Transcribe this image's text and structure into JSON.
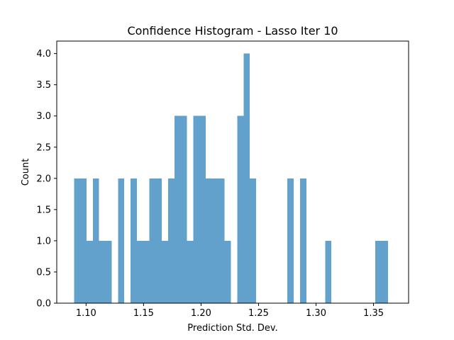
{
  "chart_data": {
    "type": "bar",
    "title": "Confidence Histogram - Lasso Iter 10",
    "xlabel": "Prediction Std. Dev.",
    "ylabel": "Count",
    "xlim": [
      1.0745,
      1.3805
    ],
    "ylim": [
      0,
      4.2
    ],
    "x_ticks": [
      "1.10",
      "1.15",
      "1.20",
      "1.25",
      "1.30",
      "1.35"
    ],
    "y_ticks": [
      "0.0",
      "0.5",
      "1.0",
      "1.5",
      "2.0",
      "2.5",
      "3.0",
      "3.5",
      "4.0"
    ],
    "bar_color": "#62a1cb",
    "bin_start": 1.0895,
    "bin_width": 0.00546,
    "counts": [
      2,
      2,
      1,
      2,
      1,
      1,
      0,
      2,
      0,
      2,
      1,
      1,
      2,
      2,
      1,
      2,
      3,
      3,
      1,
      3,
      3,
      2,
      2,
      2,
      1,
      0,
      3,
      4,
      2,
      0,
      0,
      0,
      0,
      0,
      2,
      0,
      2,
      0,
      0,
      0,
      1,
      0,
      0,
      0,
      0,
      0,
      0,
      0,
      1,
      1
    ],
    "grid": false,
    "legend": "none"
  }
}
